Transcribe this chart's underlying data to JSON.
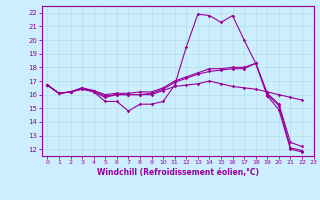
{
  "background_color": "#cceeff",
  "line_color": "#990099",
  "xlim": [
    -0.5,
    23
  ],
  "ylim": [
    11.5,
    22.5
  ],
  "yticks": [
    12,
    13,
    14,
    15,
    16,
    17,
    18,
    19,
    20,
    21,
    22
  ],
  "xticks": [
    0,
    1,
    2,
    3,
    4,
    5,
    6,
    7,
    8,
    9,
    10,
    11,
    12,
    13,
    14,
    15,
    16,
    17,
    18,
    19,
    20,
    21,
    22,
    23
  ],
  "xlabel": "Windchill (Refroidissement éolien,°C)",
  "series1": [
    16.7,
    16.1,
    16.2,
    16.5,
    16.2,
    15.5,
    15.5,
    14.8,
    15.3,
    15.3,
    15.5,
    16.7,
    19.5,
    21.9,
    21.8,
    21.3,
    21.8,
    20.0,
    18.3,
    15.9,
    14.9,
    12.0,
    11.8
  ],
  "series2": [
    16.7,
    16.1,
    16.2,
    16.4,
    16.2,
    15.8,
    16.0,
    16.0,
    16.0,
    16.0,
    16.3,
    16.6,
    16.7,
    16.8,
    17.0,
    16.8,
    16.6,
    16.5,
    16.4,
    16.2,
    16.0,
    15.8,
    15.6
  ],
  "series3": [
    16.7,
    16.1,
    16.2,
    16.4,
    16.3,
    15.9,
    16.0,
    16.0,
    16.0,
    16.1,
    16.4,
    16.9,
    17.2,
    17.5,
    17.7,
    17.8,
    17.9,
    17.9,
    18.3,
    16.0,
    15.2,
    12.1,
    11.9
  ],
  "series4": [
    16.7,
    16.1,
    16.2,
    16.5,
    16.3,
    16.0,
    16.1,
    16.1,
    16.2,
    16.2,
    16.5,
    17.0,
    17.3,
    17.6,
    17.9,
    17.9,
    18.0,
    18.0,
    18.3,
    16.1,
    15.3,
    12.5,
    12.2
  ]
}
